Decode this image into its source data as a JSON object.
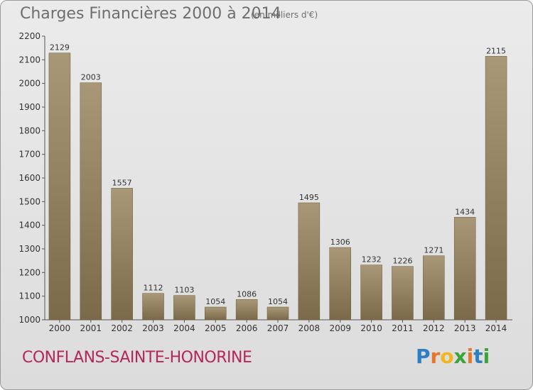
{
  "header": {
    "title": "Charges Financières 2000 à 2014",
    "subtitle": "(en milliers d'€)"
  },
  "footer": {
    "city": "CONFLANS-SAINTE-HONORINE",
    "logo": "Proxiti"
  },
  "colors": {
    "bar_top": "#a89878",
    "bar_bottom": "#7a6a4a",
    "city": "#b5265a"
  },
  "chart_data": {
    "type": "bar",
    "categories": [
      "2000",
      "2001",
      "2002",
      "2003",
      "2004",
      "2005",
      "2006",
      "2007",
      "2008",
      "2009",
      "2010",
      "2011",
      "2012",
      "2013",
      "2014"
    ],
    "values": [
      2129,
      2003,
      1557,
      1112,
      1103,
      1054,
      1086,
      1054,
      1495,
      1306,
      1232,
      1226,
      1271,
      1434,
      2115
    ],
    "ylim": [
      1000,
      2200
    ],
    "yticks": [
      1000,
      1100,
      1200,
      1300,
      1400,
      1500,
      1600,
      1700,
      1800,
      1900,
      2000,
      2100,
      2200
    ],
    "grid": false,
    "data_labels": true,
    "xlabel": "",
    "ylabel": ""
  }
}
